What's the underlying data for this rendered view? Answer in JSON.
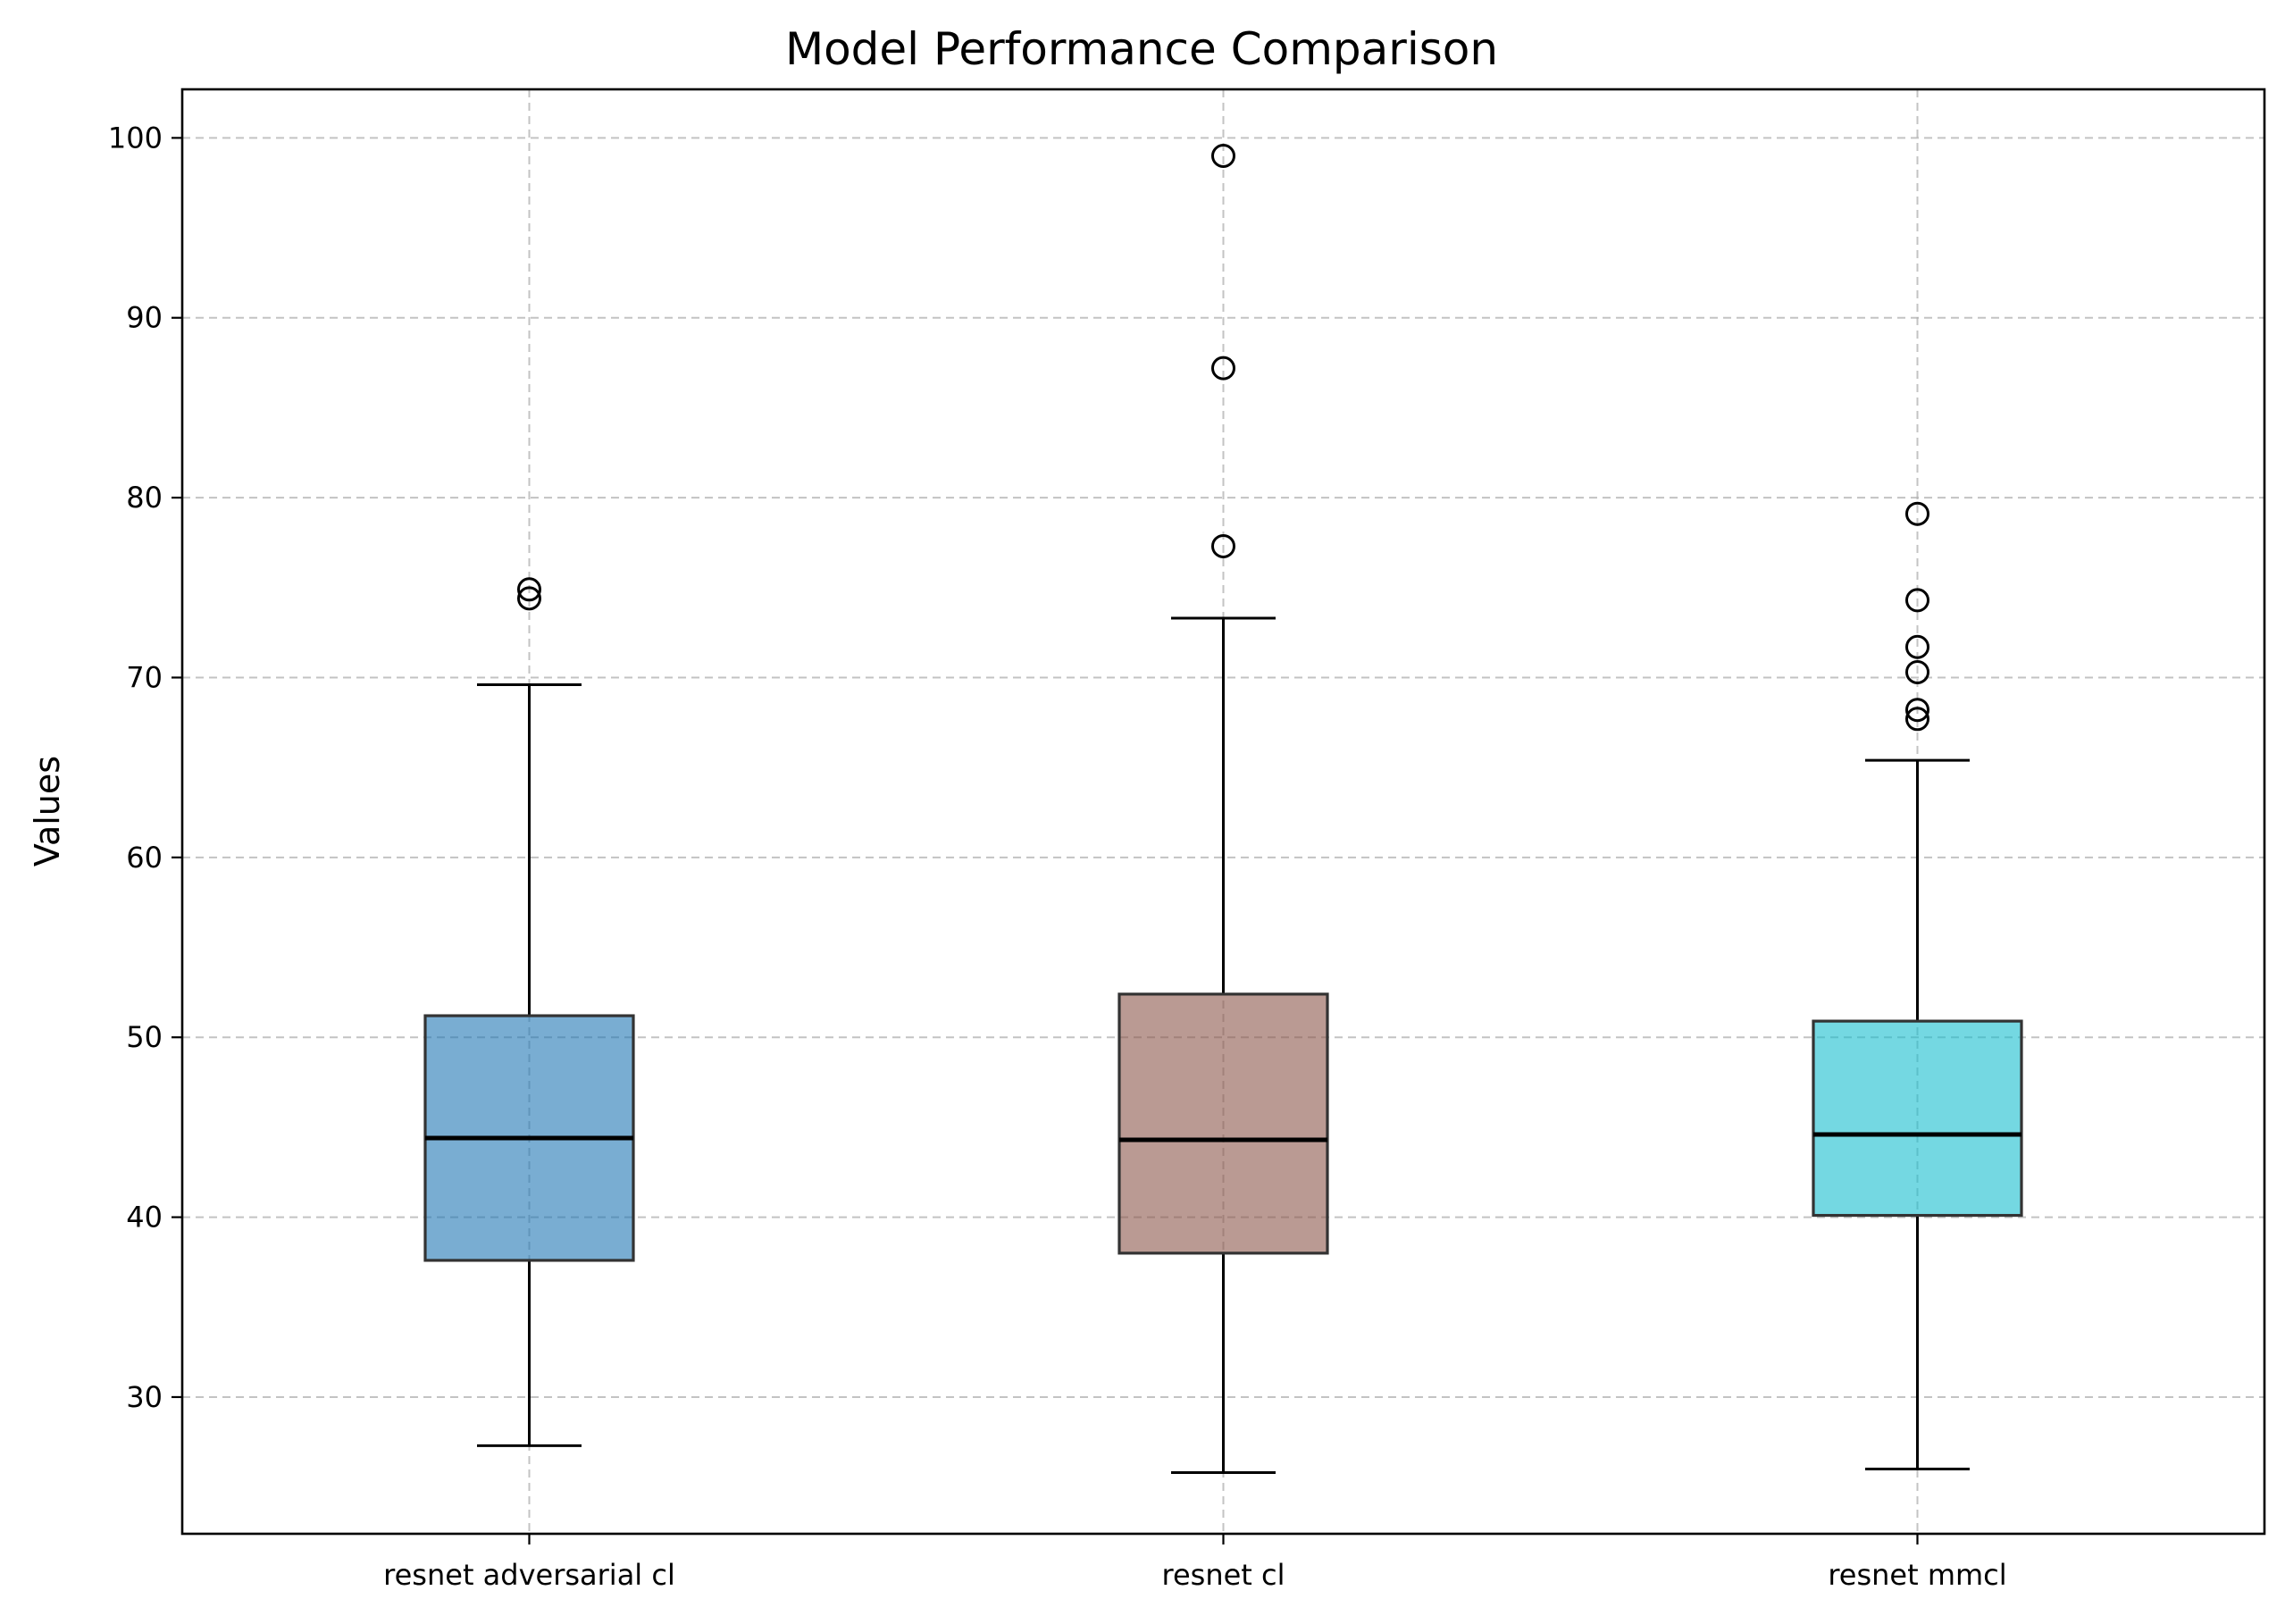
{
  "chart_data": {
    "type": "box",
    "title": "Model Performance Comparison",
    "xlabel": "",
    "ylabel": "Values",
    "ylim": [
      22.4,
      102.7
    ],
    "yticks": [
      30,
      40,
      50,
      60,
      70,
      80,
      90,
      100
    ],
    "grid": true,
    "categories": [
      "resnet adversarial cl",
      "resnet cl",
      "resnet mmcl"
    ],
    "colors": [
      "#1f77b4",
      "#8c564b",
      "#17becf"
    ],
    "series": [
      {
        "name": "resnet adversarial cl",
        "whisker_low": 27.3,
        "q1": 37.6,
        "median": 44.4,
        "q3": 51.2,
        "whisker_high": 69.6,
        "outliers": [
          74.4,
          74.9
        ]
      },
      {
        "name": "resnet cl",
        "whisker_low": 25.8,
        "q1": 38.0,
        "median": 44.3,
        "q3": 52.4,
        "whisker_high": 73.3,
        "outliers": [
          77.3,
          87.2,
          99.0
        ]
      },
      {
        "name": "resnet mmcl",
        "whisker_low": 26.0,
        "q1": 40.1,
        "median": 44.6,
        "q3": 50.9,
        "whisker_high": 65.4,
        "outliers": [
          67.7,
          68.2,
          70.3,
          71.7,
          74.3,
          79.1
        ]
      }
    ]
  }
}
